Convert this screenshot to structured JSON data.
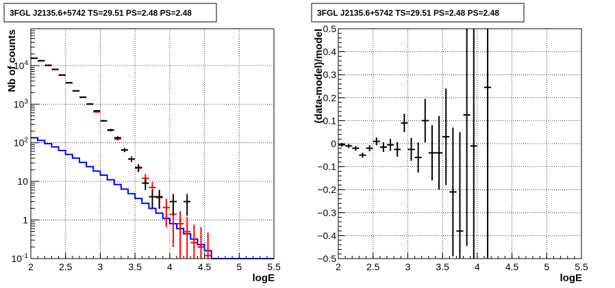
{
  "colors": {
    "data": "#000000",
    "model": "#ff0000",
    "source": "#0000ff",
    "grid": "#000000",
    "frame": "#000000"
  },
  "chart_data": [
    {
      "type": "line",
      "title": "3FGL J2135.6+5742 TS=29.51 PS=2.48 PS=2.48",
      "xlabel": "logE",
      "ylabel": "Nb of counts",
      "xlim": [
        2,
        5.5
      ],
      "ylim": [
        0.1,
        90000
      ],
      "yscale": "log",
      "grid": true,
      "xticks": [
        "2",
        "2.5",
        "3",
        "3.5",
        "4",
        "4.5",
        "5",
        "5.5"
      ],
      "yticks": [
        {
          "value": 0.1,
          "label": "10^-1"
        },
        {
          "value": 1,
          "label": "1"
        },
        {
          "value": 10,
          "label": "10"
        },
        {
          "value": 100,
          "label": "10^2"
        },
        {
          "value": 1000,
          "label": "10^3"
        },
        {
          "value": 10000,
          "label": "10^4"
        }
      ],
      "bin_width": 0.1,
      "series": [
        {
          "role": "data",
          "x": [
            2.05,
            2.15,
            2.25,
            2.35,
            2.45,
            2.55,
            2.65,
            2.75,
            2.85,
            2.95,
            3.05,
            3.15,
            3.25,
            3.35,
            3.45,
            3.55,
            3.65,
            3.75,
            3.85,
            3.95,
            4.05,
            4.15,
            4.25
          ],
          "y": [
            15600,
            13400,
            10200,
            8000,
            5700,
            3600,
            2220,
            1520,
            1010,
            670,
            370,
            215,
            135,
            65,
            38,
            23,
            9,
            4,
            4,
            0,
            3,
            0,
            3
          ],
          "err": [
            125,
            116,
            101,
            89,
            75,
            60,
            47,
            39,
            32,
            26,
            19,
            15,
            12,
            8,
            6,
            5,
            3,
            2,
            2,
            0,
            1.7,
            0,
            1.7
          ]
        },
        {
          "role": "model",
          "x": [
            2.05,
            2.15,
            2.25,
            2.35,
            2.45,
            2.55,
            2.65,
            2.75,
            2.85,
            2.95,
            3.05,
            3.15,
            3.25,
            3.35,
            3.45,
            3.55,
            3.65,
            3.75,
            3.85,
            3.95,
            4.05,
            4.15,
            4.25,
            4.35,
            4.45,
            4.55
          ],
          "y": [
            15400,
            13200,
            10000,
            7900,
            5600,
            3550,
            2200,
            1500,
            1000,
            630,
            370,
            210,
            125,
            65,
            38,
            22,
            12,
            7,
            3.8,
            2.1,
            1.4,
            0.8,
            0.5,
            0.26,
            0.2,
            0.12
          ],
          "err": [
            124,
            115,
            100,
            89,
            75,
            60,
            47,
            39,
            32,
            25,
            19,
            14,
            11,
            8,
            6,
            4.7,
            3.5,
            2.6,
            1.9,
            1.45,
            1.2,
            0.9,
            0.7,
            0.5,
            0.45,
            0.35
          ]
        },
        {
          "role": "source",
          "x": [
            2.0,
            2.1,
            2.2,
            2.3,
            2.4,
            2.5,
            2.6,
            2.7,
            2.8,
            2.9,
            3.0,
            3.1,
            3.2,
            3.3,
            3.4,
            3.5,
            3.6,
            3.7,
            3.8,
            3.9,
            4.0,
            4.1,
            4.2,
            4.3,
            4.4,
            4.5,
            4.6
          ],
          "y": [
            135,
            115,
            95,
            78,
            63,
            50,
            40,
            31,
            24,
            18.5,
            14.5,
            11,
            8.3,
            6.3,
            4.8,
            3.6,
            2.7,
            2.0,
            1.5,
            1.1,
            0.8,
            0.6,
            0.44,
            0.32,
            0.23,
            0.16,
            0.1
          ]
        }
      ]
    },
    {
      "type": "scatter",
      "title": "3FGL J2135.6+5742 TS=29.51 PS=2.48 PS=2.48",
      "xlabel": "logE",
      "ylabel": "(data-model)/model",
      "xlim": [
        2,
        5.5
      ],
      "ylim": [
        -0.5,
        0.5
      ],
      "grid": true,
      "xticks": [
        "2",
        "2.5",
        "3",
        "3.5",
        "4",
        "4.5",
        "5",
        "5.5"
      ],
      "yticks": [
        "-0.5",
        "-0.4",
        "-0.3",
        "-0.2",
        "-0.1",
        "0",
        "0.1",
        "0.2",
        "0.3",
        "0.4",
        "0.5"
      ],
      "bin_width": 0.1,
      "series": [
        {
          "role": "residual",
          "x": [
            2.05,
            2.15,
            2.25,
            2.35,
            2.45,
            2.55,
            2.65,
            2.75,
            2.85,
            2.95,
            3.05,
            3.15,
            3.25,
            3.35,
            3.45,
            3.55,
            3.65,
            3.75,
            3.85,
            3.95,
            4.15
          ],
          "y": [
            -0.005,
            -0.01,
            -0.02,
            -0.05,
            -0.02,
            0.01,
            -0.015,
            -0.005,
            -0.025,
            0.09,
            -0.025,
            -0.06,
            0.1,
            -0.04,
            -0.04,
            0.03,
            -0.21,
            -0.38,
            0.125,
            -0.01,
            0.245
          ],
          "err": [
            0.008,
            0.009,
            0.01,
            0.011,
            0.013,
            0.017,
            0.021,
            0.026,
            0.032,
            0.04,
            0.05,
            0.066,
            0.095,
            0.12,
            0.16,
            0.21,
            0.28,
            0.43,
            0.57,
            0.7,
            1.2
          ]
        }
      ]
    }
  ]
}
